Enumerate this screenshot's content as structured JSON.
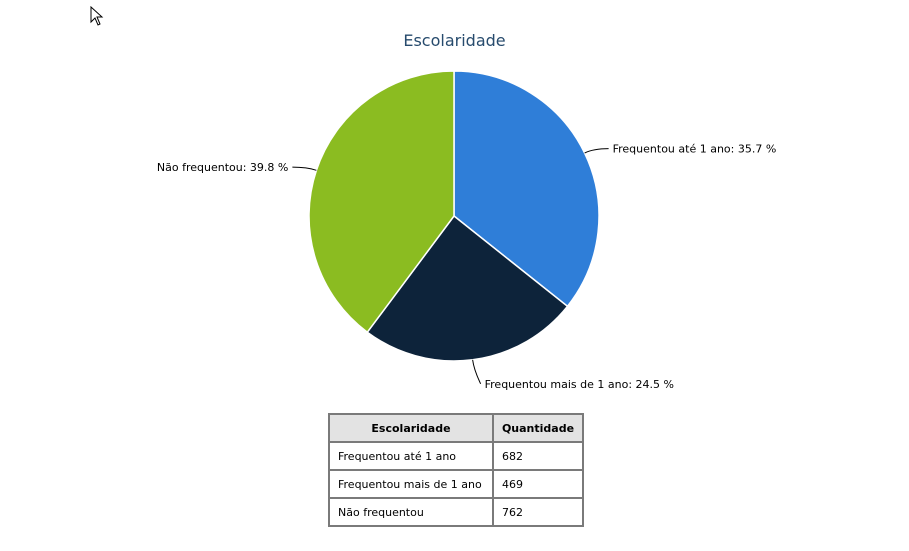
{
  "chart_data": {
    "type": "pie",
    "title": "Escolaridade",
    "slices": [
      {
        "label": "Frequentou até 1 ano",
        "percent": 35.7,
        "value": 682,
        "color": "#2f7ed8",
        "display": "Frequentou até 1 ano: 35.7 %"
      },
      {
        "label": "Frequentou mais de 1 ano",
        "percent": 24.5,
        "value": 469,
        "color": "#0d233a",
        "display": "Frequentou mais de 1 ano: 24.5 %"
      },
      {
        "label": "Não frequentou",
        "percent": 39.8,
        "value": 762,
        "color": "#8bbc21",
        "display": "Não frequentou: 39.8 %"
      }
    ]
  },
  "table": {
    "headers": [
      "Escolaridade",
      "Quantidade"
    ],
    "rows": [
      [
        "Frequentou até 1 ano",
        "682"
      ],
      [
        "Frequentou mais de 1 ano",
        "469"
      ],
      [
        "Não frequentou",
        "762"
      ]
    ]
  }
}
